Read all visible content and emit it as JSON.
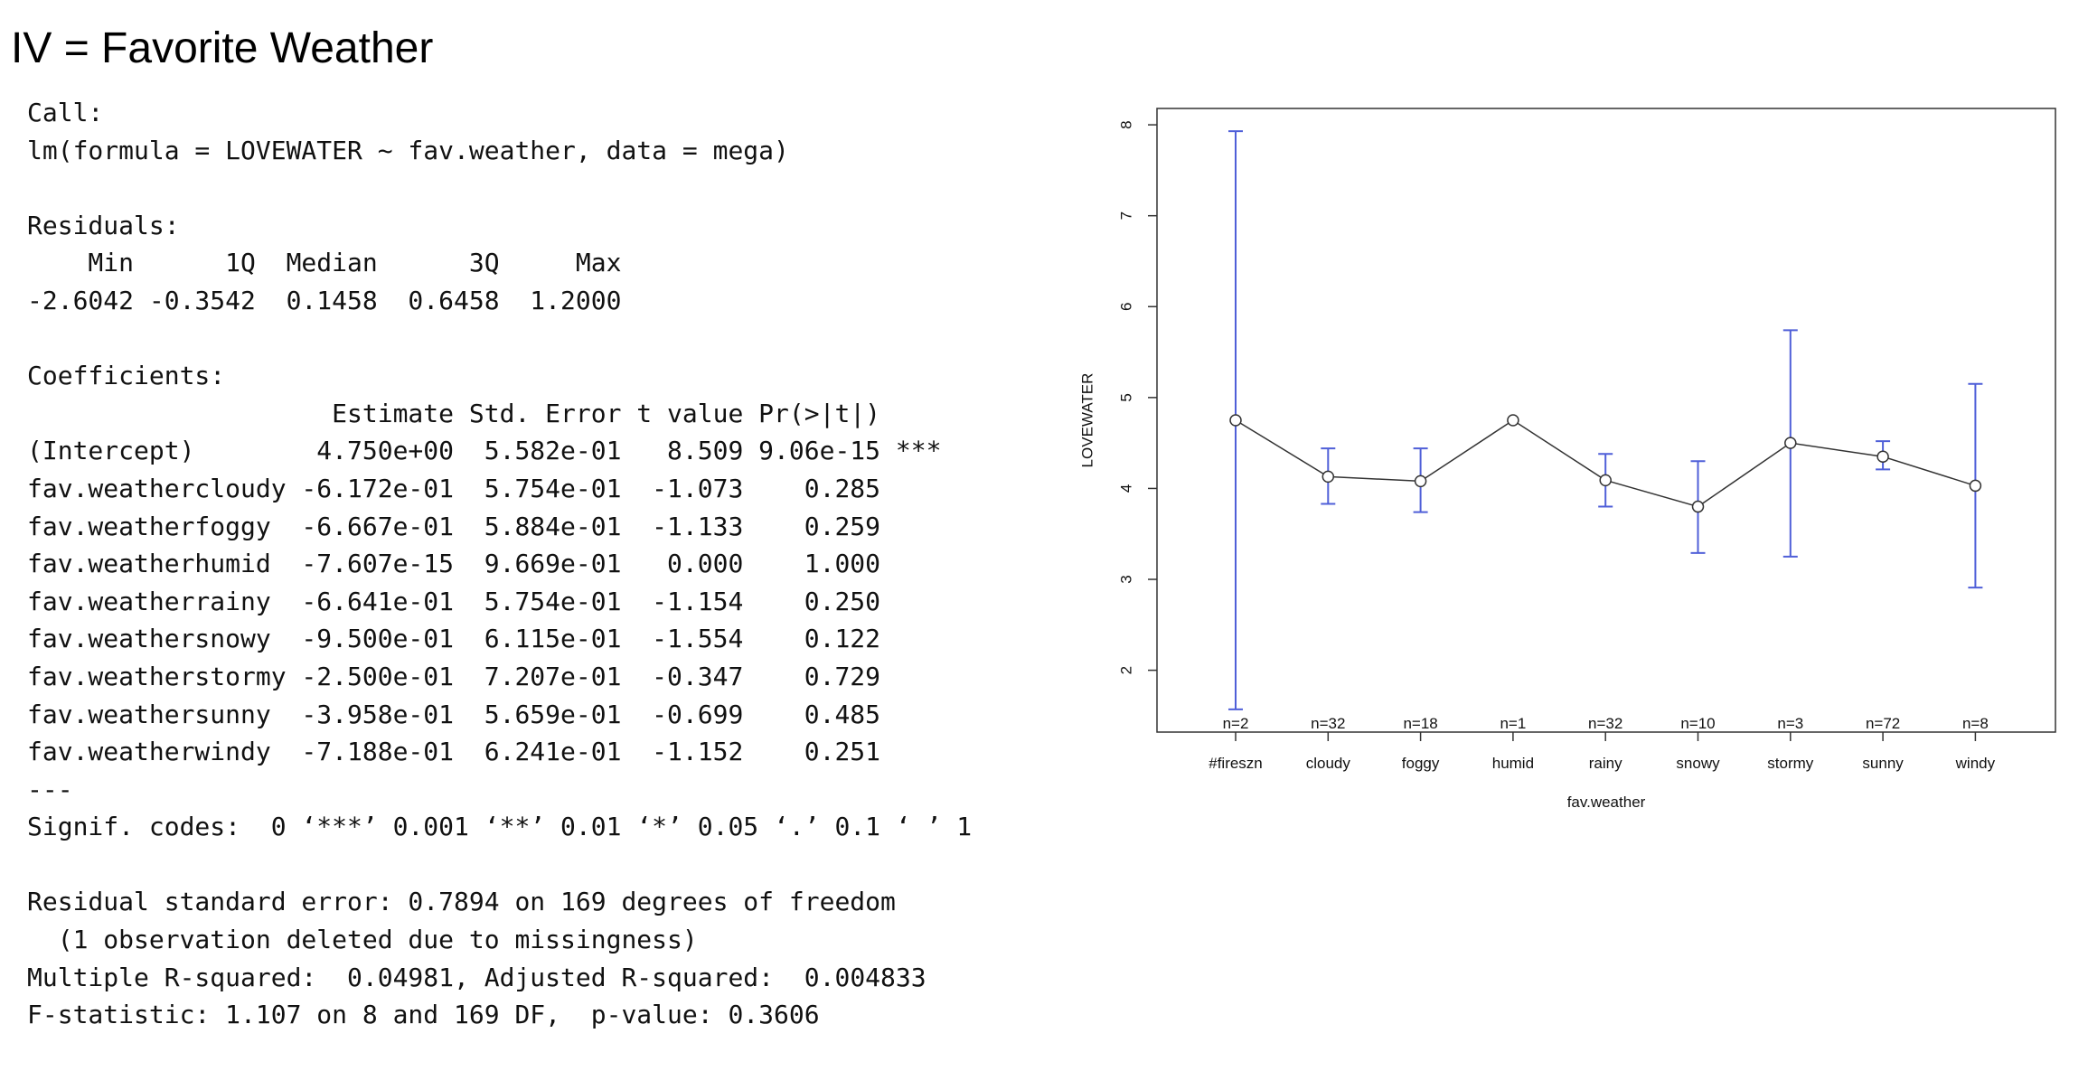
{
  "title": "IV = Favorite Weather",
  "r_output": [
    [
      "Call:",
      "lm(formula = LOVEWATER ~ fav.weather, data = mega)"
    ],
    [
      "Residuals:",
      "    Min      1Q  Median      3Q     Max ",
      "-2.6042 -0.3542  0.1458  0.6458  1.2000 "
    ],
    [
      "Coefficients:",
      "                    Estimate Std. Error t value Pr(>|t|)    ",
      "(Intercept)        4.750e+00  5.582e-01   8.509 9.06e-15 ***",
      "fav.weathercloudy -6.172e-01  5.754e-01  -1.073    0.285    ",
      "fav.weatherfoggy  -6.667e-01  5.884e-01  -1.133    0.259    ",
      "fav.weatherhumid  -7.607e-15  9.669e-01   0.000    1.000    ",
      "fav.weatherrainy  -6.641e-01  5.754e-01  -1.154    0.250    ",
      "fav.weathersnowy  -9.500e-01  6.115e-01  -1.554    0.122    ",
      "fav.weatherstormy -2.500e-01  7.207e-01  -0.347    0.729    ",
      "fav.weathersunny  -3.958e-01  5.659e-01  -0.699    0.485    ",
      "fav.weatherwindy  -7.188e-01  6.241e-01  -1.152    0.251    ",
      "---",
      "Signif. codes:  0 ‘***’ 0.001 ‘**’ 0.01 ‘*’ 0.05 ‘.’ 0.1 ‘ ’ 1"
    ],
    [
      "Residual standard error: 0.7894 on 169 degrees of freedom",
      "  (1 observation deleted due to missingness)",
      "Multiple R-squared:  0.04981,\tAdjusted R-squared:  0.004833 ",
      "F-statistic: 1.107 on 8 and 169 DF,  p-value: 0.3606"
    ]
  ],
  "chart_data": {
    "type": "means",
    "x_label": "fav.weather",
    "y_label": "LOVEWATER",
    "categories": [
      "#fireszn",
      "cloudy",
      "foggy",
      "humid",
      "rainy",
      "snowy",
      "stormy",
      "sunny",
      "windy"
    ],
    "values": [
      4.75,
      4.13,
      4.08,
      4.75,
      4.09,
      3.8,
      4.5,
      4.35,
      4.03
    ],
    "lower": [
      1.57,
      3.83,
      3.74,
      null,
      3.8,
      3.29,
      3.25,
      4.21,
      2.91
    ],
    "upper": [
      7.93,
      4.44,
      4.44,
      null,
      4.38,
      4.3,
      5.74,
      4.52,
      5.15
    ],
    "n_labels": [
      "n=2",
      "n=32",
      "n=18",
      "n=1",
      "n=32",
      "n=10",
      "n=3",
      "n=72",
      "n=8"
    ],
    "line_color": "#333333",
    "bar_color": "#4f5fd8",
    "ylim": [
      1.32,
      8.18
    ],
    "yticks": [
      2,
      3,
      4,
      5,
      6,
      7,
      8
    ]
  }
}
